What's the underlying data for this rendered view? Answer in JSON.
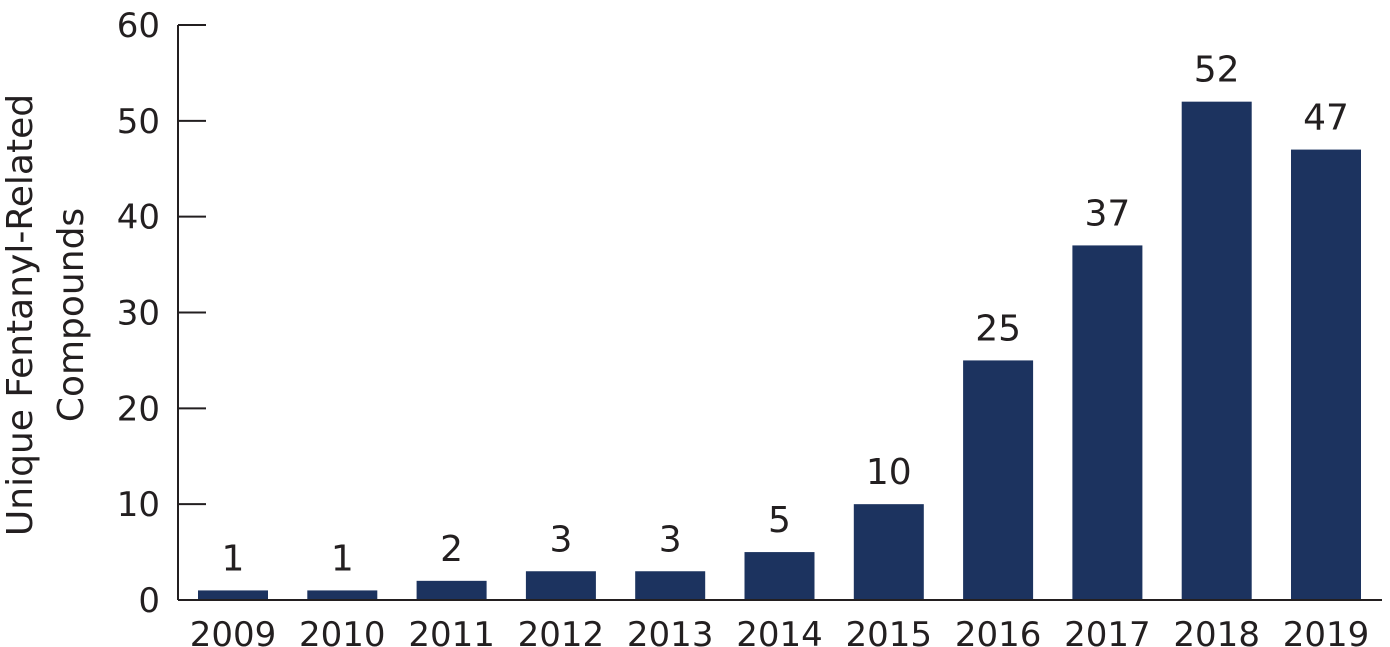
{
  "chart_data": {
    "type": "bar",
    "categories": [
      "2009",
      "2010",
      "2011",
      "2012",
      "2013",
      "2014",
      "2015",
      "2016",
      "2017",
      "2018",
      "2019"
    ],
    "values": [
      1,
      1,
      2,
      3,
      3,
      5,
      10,
      25,
      37,
      52,
      47
    ],
    "data_labels": [
      "1",
      "1",
      "2",
      "3",
      "3",
      "5",
      "10",
      "25",
      "37",
      "52",
      "47"
    ],
    "title": "",
    "xlabel": "",
    "ylabel_lines": [
      "Unique Fentanyl-Related",
      "Compounds"
    ],
    "ylim": [
      0,
      60
    ],
    "yticks": [
      0,
      10,
      20,
      30,
      40,
      50,
      60
    ],
    "grid": false,
    "legend": "none",
    "bar_color": "#1c335f",
    "axis_color": "#231f20"
  }
}
